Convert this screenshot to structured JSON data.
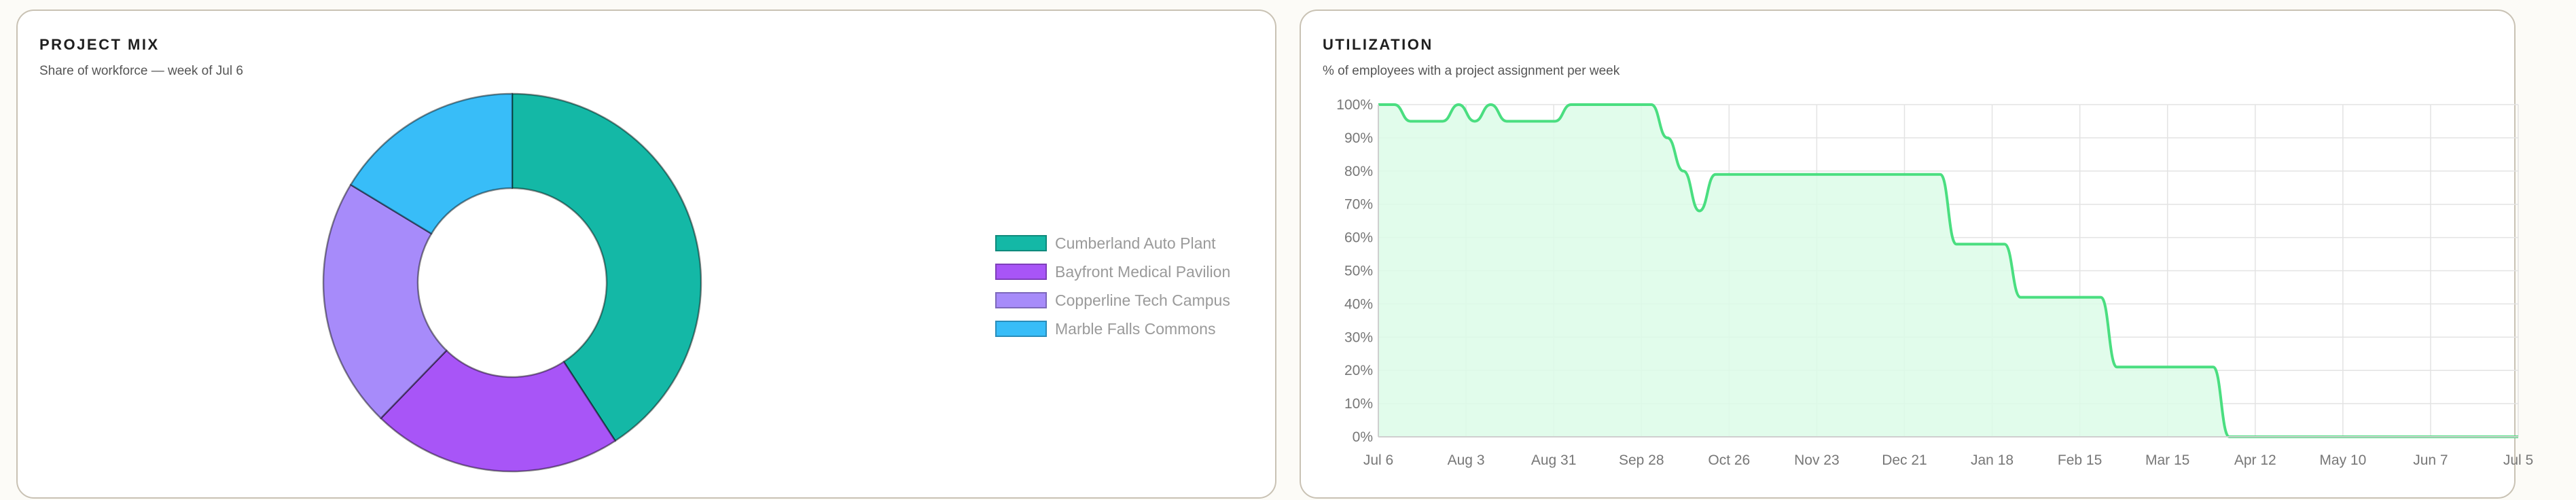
{
  "project_mix": {
    "title": "PROJECT MIX",
    "subtitle": "Share of workforce — week of Jul 6"
  },
  "utilization": {
    "title": "UTILIZATION",
    "subtitle": "% of employees with a project assignment per week"
  },
  "chart_data": [
    {
      "type": "pie",
      "variant": "donut",
      "title": "PROJECT MIX",
      "subtitle": "Share of workforce — week of Jul 6",
      "legend_position": "right",
      "slices": [
        {
          "label": "Cumberland Auto Plant",
          "value": 40,
          "color": "#14b8a6"
        },
        {
          "label": "Bayfront Medical Pavilion",
          "value": 21,
          "color": "#a855f7"
        },
        {
          "label": "Copperline Tech Campus",
          "value": 21,
          "color": "#a78bfa"
        },
        {
          "label": "Marble Falls Commons",
          "value": 16,
          "color": "#38bdf8"
        }
      ]
    },
    {
      "type": "area",
      "title": "UTILIZATION",
      "subtitle": "% of employees with a project assignment per week",
      "ylim": [
        0,
        100
      ],
      "yticks": [
        0,
        10,
        20,
        30,
        40,
        50,
        60,
        70,
        80,
        90,
        100
      ],
      "ytick_suffix": "%",
      "xticks": [
        "Jul 6",
        "Aug 3",
        "Aug 31",
        "Sep 28",
        "Oct 26",
        "Nov 23",
        "Dec 21",
        "Jan 18",
        "Feb 15",
        "Mar 15",
        "Apr 12",
        "May 10",
        "Jun 7",
        "Jul 5"
      ],
      "grid": true,
      "line_color": "#4ade80",
      "fill_color": "#dcfce7",
      "series": [
        {
          "values": [
            100,
            100,
            95,
            95,
            95,
            100,
            95,
            100,
            95,
            95,
            95,
            95,
            100,
            100,
            100,
            100,
            100,
            100,
            90,
            80,
            68,
            79,
            79,
            79,
            79,
            79,
            79,
            79,
            79,
            79,
            79,
            79,
            79,
            79,
            79,
            79,
            58,
            58,
            58,
            58,
            42,
            42,
            42,
            42,
            42,
            42,
            21,
            21,
            21,
            21,
            21,
            21,
            21,
            0,
            0,
            0,
            0,
            0,
            0,
            0,
            0,
            0,
            0,
            0,
            0,
            0,
            0,
            0,
            0,
            0,
            0,
            0
          ]
        }
      ]
    }
  ]
}
